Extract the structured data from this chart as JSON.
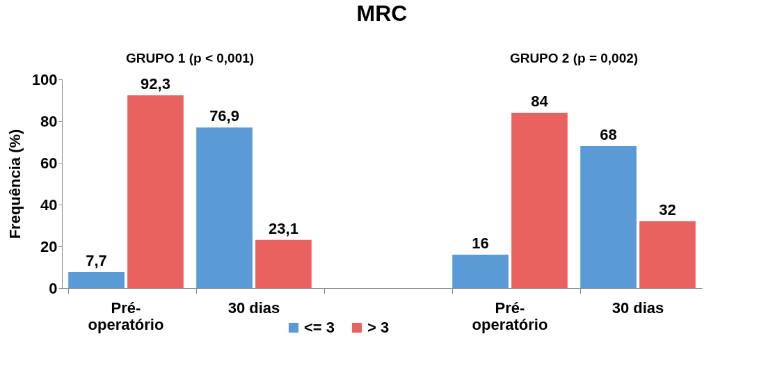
{
  "chart_data": {
    "type": "bar",
    "title": "MRC",
    "ylabel": "Frequência (%)",
    "categories": [
      "Pré-operatório",
      "30 dias",
      null,
      "Pré-operatório",
      "30 dias"
    ],
    "series": [
      {
        "name": "<= 3",
        "color": "#5b9bd5",
        "values": [
          7.7,
          76.9,
          null,
          16,
          68
        ],
        "value_labels": [
          "7,7",
          "76,9",
          null,
          "16",
          "68"
        ]
      },
      {
        "name": "> 3",
        "color": "#e8625f",
        "values": [
          92.3,
          23.1,
          null,
          84,
          32
        ],
        "value_labels": [
          "92,3",
          "23,1",
          null,
          "84",
          "32"
        ]
      }
    ],
    "annotations": [
      "GRUPO 1 (p < 0,001)",
      "GRUPO 2 (p = 0,002)"
    ],
    "ylim": [
      0,
      100
    ],
    "yticks": [
      0,
      20,
      40,
      60,
      80,
      100
    ],
    "grid": false,
    "legend": "bottom"
  }
}
